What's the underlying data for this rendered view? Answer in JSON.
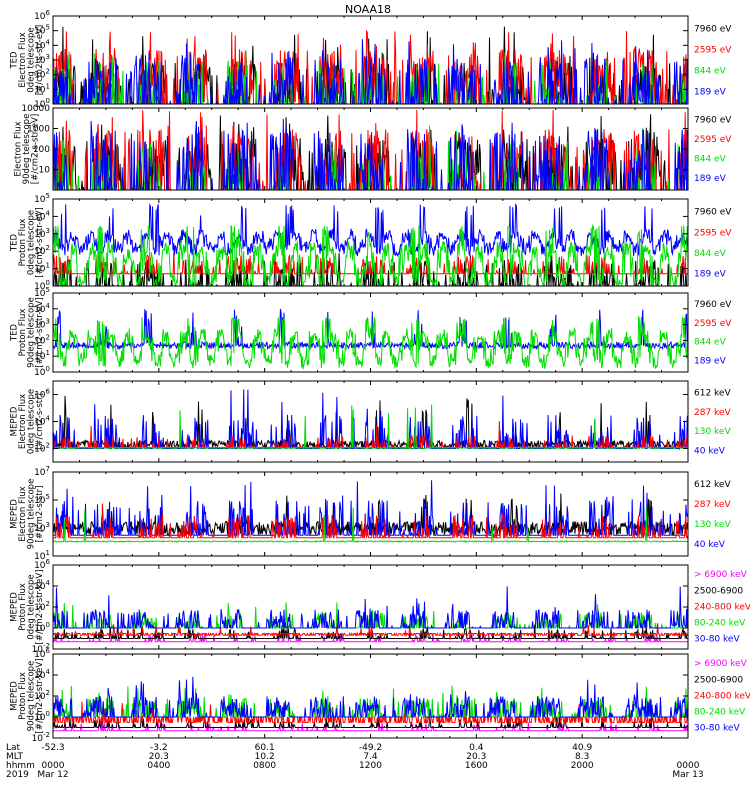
{
  "title": "NOAA18",
  "colors": {
    "black": "#000000",
    "red": "#ff0000",
    "green": "#00dd00",
    "blue": "#0000ff",
    "magenta": "#ff00ff"
  },
  "footer": {
    "row_labels": [
      "Lat",
      "MLT",
      "hhmm",
      "2019"
    ],
    "ticks": [
      {
        "time_hours": 0,
        "lat": "-52.3",
        "mlt": "",
        "hhmm": "0000",
        "date": "Mar 12"
      },
      {
        "time_hours": 4,
        "lat": "-3.2",
        "mlt": "20.3",
        "hhmm": "0400",
        "date": ""
      },
      {
        "time_hours": 8,
        "lat": "60.1",
        "mlt": "10.2",
        "hhmm": "0800",
        "date": ""
      },
      {
        "time_hours": 12,
        "lat": "-49.2",
        "mlt": "7.4",
        "hhmm": "1200",
        "date": ""
      },
      {
        "time_hours": 16,
        "lat": "0.4",
        "mlt": "20.3",
        "hhmm": "1600",
        "date": ""
      },
      {
        "time_hours": 20,
        "lat": "40.9",
        "mlt": "8.3",
        "hhmm": "2000",
        "date": ""
      },
      {
        "time_hours": 24,
        "lat": "",
        "mlt": "",
        "hhmm": "0000",
        "date": "Mar 13"
      }
    ]
  },
  "chart_data": [
    {
      "type": "line",
      "ylabel": [
        "TED",
        "Electron Flux",
        "0deg telescope",
        "[#/cm2-s-str-eV]"
      ],
      "xlim": [
        0,
        24
      ],
      "yscale": "log",
      "ylim": [
        1,
        1000000
      ],
      "ytick_values": [
        1,
        10,
        100,
        1000,
        10000,
        100000,
        1000000
      ],
      "ytick_labels": [
        "10^0",
        "10^1",
        "10^2",
        "10^3",
        "10^4",
        "10^5",
        "10^6"
      ],
      "series": [
        {
          "name": "7960 eV",
          "color": "#000000",
          "style": "spike",
          "base": 1,
          "typical": 200,
          "peak": 300000,
          "density": 0.9
        },
        {
          "name": "2595 eV",
          "color": "#ff0000",
          "style": "spike",
          "base": 1,
          "typical": 2000,
          "peak": 100000,
          "density": 0.9
        },
        {
          "name": "844 eV",
          "color": "#00dd00",
          "style": "spike",
          "base": 1,
          "typical": 300,
          "peak": 5000,
          "density": 0.3
        },
        {
          "name": "189 eV",
          "color": "#0000ff",
          "style": "spike",
          "base": 1,
          "typical": 500,
          "peak": 30000,
          "density": 0.6
        }
      ]
    },
    {
      "type": "line",
      "ylabel": [
        "Electron Flux",
        "90deg telescope",
        "[#/cm2-s-str-eV]"
      ],
      "xlim": [
        0,
        24
      ],
      "yscale": "log",
      "ylim": [
        1,
        10000
      ],
      "ytick_values": [
        10,
        100,
        1000,
        10000
      ],
      "ytick_labels": [
        "10",
        "100",
        "1000",
        "10000"
      ],
      "series": [
        {
          "name": "7960 eV",
          "color": "#000000",
          "style": "spike",
          "base": 1,
          "typical": 100,
          "peak": 5000,
          "density": 0.9
        },
        {
          "name": "2595 eV",
          "color": "#ff0000",
          "style": "spike",
          "base": 1,
          "typical": 300,
          "peak": 8000,
          "density": 0.8
        },
        {
          "name": "844 eV",
          "color": "#00dd00",
          "style": "spike",
          "base": 1,
          "typical": 100,
          "peak": 2000,
          "density": 0.3
        },
        {
          "name": "189 eV",
          "color": "#0000ff",
          "style": "spike",
          "base": 1,
          "typical": 300,
          "peak": 3000,
          "density": 0.6
        }
      ]
    },
    {
      "type": "line",
      "ylabel": [
        "TED",
        "Proton Flux",
        "0deg telescope",
        "[#/cm2-s-str-eV]"
      ],
      "xlim": [
        0,
        24
      ],
      "yscale": "log",
      "ylim": [
        1,
        100000
      ],
      "ytick_values": [
        1,
        10,
        100,
        1000,
        10000,
        100000
      ],
      "ytick_labels": [
        "10^0",
        "10^1",
        "10^2",
        "10^3",
        "10^4",
        "10^5"
      ],
      "series": [
        {
          "name": "189 eV",
          "color": "#0000ff",
          "style": "wave",
          "base": 100,
          "typical": 1000,
          "peak": 50000,
          "density": 1
        },
        {
          "name": "7960 eV",
          "color": "#000000",
          "style": "spike",
          "base": 1,
          "typical": 10,
          "peak": 100,
          "density": 0.5
        },
        {
          "name": "2595 eV",
          "color": "#ff0000",
          "style": "spike",
          "base": 5,
          "typical": 20,
          "peak": 100,
          "density": 0.4
        },
        {
          "name": "844 eV",
          "color": "#00dd00",
          "style": "wave",
          "base": 1,
          "typical": 200,
          "peak": 3000,
          "density": 1
        }
      ]
    },
    {
      "type": "line",
      "ylabel": [
        "TED",
        "Proton Flux",
        "90deg telescope",
        "[#/cm2-s-str-eV]"
      ],
      "xlim": [
        0,
        24
      ],
      "yscale": "log",
      "ylim": [
        1,
        100000
      ],
      "ytick_values": [
        1,
        10,
        100,
        1000,
        10000,
        100000
      ],
      "ytick_labels": [
        "10^0",
        "10^1",
        "10^2",
        "10^3",
        "10^4",
        "10^5"
      ],
      "series": [
        {
          "name": "7960 eV",
          "color": "#000000",
          "style": "spike",
          "base": 1,
          "typical": 1,
          "peak": 1,
          "density": 0
        },
        {
          "name": "2595 eV",
          "color": "#ff0000",
          "style": "spike",
          "base": 1,
          "typical": 1,
          "peak": 1,
          "density": 0
        },
        {
          "name": "189 eV",
          "color": "#0000ff",
          "style": "band",
          "base": 30,
          "typical": 80,
          "peak": 10000,
          "density": 1
        },
        {
          "name": "844 eV",
          "color": "#00dd00",
          "style": "wave",
          "base": 3,
          "typical": 300,
          "peak": 3000,
          "density": 1
        }
      ]
    },
    {
      "type": "line",
      "ylabel": [
        "MEPED",
        "Electron Flux",
        "0deg telescope",
        "[#/cm2-s-str]"
      ],
      "xlim": [
        0,
        24
      ],
      "yscale": "log",
      "ylim": [
        10,
        10000000
      ],
      "ytick_values": [
        100,
        10000,
        1000000
      ],
      "ytick_labels": [
        "10^2",
        "10^4",
        "10^6"
      ],
      "series": [
        {
          "name": "612 keV",
          "color": "#000000",
          "style": "noisy",
          "base": 100,
          "typical": 400,
          "peak": 1000000,
          "density": 1
        },
        {
          "name": "40 keV",
          "color": "#0000ff",
          "style": "spike",
          "base": 100,
          "typical": 10000,
          "peak": 5000000,
          "density": 0.4
        },
        {
          "name": "287 keV",
          "color": "#ff0000",
          "style": "spike",
          "base": 120,
          "typical": 300,
          "peak": 100000,
          "density": 0.3
        },
        {
          "name": "130 keV",
          "color": "#00dd00",
          "style": "flat",
          "base": 100,
          "typical": 110,
          "peak": 200000,
          "density": 1
        }
      ]
    },
    {
      "type": "line",
      "ylabel": [
        "MEPED",
        "Electron Flux",
        "90deg telescope",
        "[#/cm2-s-str]"
      ],
      "xlim": [
        0,
        24
      ],
      "yscale": "log",
      "ylim": [
        10,
        10000000
      ],
      "ytick_values": [
        10,
        1000,
        100000,
        10000000
      ],
      "ytick_labels": [
        "10^1",
        "10^3",
        "10^5",
        "10^7"
      ],
      "series": [
        {
          "name": "612 keV",
          "color": "#000000",
          "style": "noisy",
          "base": 300,
          "typical": 3000,
          "peak": 300000,
          "density": 1
        },
        {
          "name": "40 keV",
          "color": "#0000ff",
          "style": "spike",
          "base": 300,
          "typical": 30000,
          "peak": 3000000,
          "density": 0.5
        },
        {
          "name": "287 keV",
          "color": "#ff0000",
          "style": "spike",
          "base": 200,
          "typical": 3000,
          "peak": 100000,
          "density": 0.4
        },
        {
          "name": "130 keV",
          "color": "#00dd00",
          "style": "flat",
          "base": 100,
          "typical": 200,
          "peak": 30000,
          "density": 1
        }
      ]
    },
    {
      "type": "line",
      "ylabel": [
        "MEPED",
        "Proton Flux",
        "0deg telescope",
        "[#/cm2-s-str-keV]"
      ],
      "xlim": [
        0,
        24
      ],
      "yscale": "log",
      "ylim": [
        0.01,
        1000000
      ],
      "ytick_values": [
        0.01,
        1,
        100,
        10000,
        1000000
      ],
      "ytick_labels": [
        "10^-2",
        "10^0",
        "10^2",
        "10^4",
        "10^6"
      ],
      "series": [
        {
          "name": "> 6900 keV",
          "color": "#ff00ff",
          "style": "spike",
          "base": 0.05,
          "typical": 0.1,
          "peak": 0.5,
          "density": 0.2
        },
        {
          "name": "2500-6900",
          "color": "#000000",
          "style": "spike",
          "base": 0.1,
          "typical": 0.3,
          "peak": 3,
          "density": 0.3
        },
        {
          "name": "240-800 keV",
          "color": "#ff0000",
          "style": "dots",
          "base": 0.2,
          "typical": 0.3,
          "peak": 3,
          "density": 1
        },
        {
          "name": "80-240 keV",
          "color": "#00dd00",
          "style": "spike",
          "base": 1,
          "typical": 10,
          "peak": 300,
          "density": 0.5
        },
        {
          "name": "30-80 keV",
          "color": "#0000ff",
          "style": "spike",
          "base": 1,
          "typical": 20,
          "peak": 10000,
          "density": 0.7
        }
      ]
    },
    {
      "type": "line",
      "ylabel": [
        "MEPED",
        "Proton Flux",
        "90deg telescope",
        "[#/cm2-s-str-keV]"
      ],
      "xlim": [
        0,
        24
      ],
      "yscale": "log",
      "ylim": [
        0.01,
        1000000
      ],
      "ytick_values": [
        0.01,
        1,
        100,
        10000,
        1000000
      ],
      "ytick_labels": [
        "10^-2",
        "10^0",
        "10^2",
        "10^4",
        "10^6"
      ],
      "series": [
        {
          "name": "> 6900 keV",
          "color": "#ff00ff",
          "style": "spike",
          "base": 0.05,
          "typical": 0.1,
          "peak": 0.5,
          "density": 0.2
        },
        {
          "name": "2500-6900",
          "color": "#000000",
          "style": "spike",
          "base": 0.1,
          "typical": 0.3,
          "peak": 3,
          "density": 0.3
        },
        {
          "name": "240-800 keV",
          "color": "#ff0000",
          "style": "dots",
          "base": 0.3,
          "typical": 1,
          "peak": 30,
          "density": 1
        },
        {
          "name": "80-240 keV",
          "color": "#00dd00",
          "style": "spike",
          "base": 1,
          "typical": 20,
          "peak": 1000,
          "density": 0.7
        },
        {
          "name": "30-80 keV",
          "color": "#0000ff",
          "style": "spike",
          "base": 1,
          "typical": 30,
          "peak": 10000,
          "density": 0.8
        }
      ]
    }
  ]
}
